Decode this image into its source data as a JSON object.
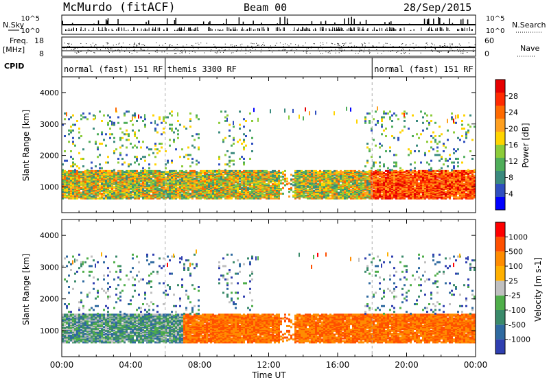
{
  "header": {
    "station": "McMurdo (fitACF)",
    "beam": "Beam 00",
    "date": "28/Sep/2015"
  },
  "strip": {
    "nsky_label": "N.Sky",
    "nsearch_label": "N.Search",
    "freq_label_1": "Freq.",
    "freq_label_2": "[MHz]",
    "nave_label": "Nave",
    "cpid_label": "CPID",
    "nsky_ticks": [
      "10^5",
      "10^0"
    ],
    "nsearch_ticks": [
      "10^5",
      "10^0"
    ],
    "freq_ticks": [
      "18",
      "8"
    ],
    "nave_ticks": [
      "60",
      "0"
    ],
    "cpid_segments": [
      {
        "label": "normal (fast) 151 RF",
        "start_h": 0,
        "end_h": 6
      },
      {
        "label": "themis 3300 RF",
        "start_h": 6,
        "end_h": 18
      },
      {
        "label": "normal (fast) 151 RF",
        "start_h": 18,
        "end_h": 24
      }
    ]
  },
  "chart_data": [
    {
      "type": "heatmap",
      "ylabel": "Slant Range [km]",
      "y_ticks": [
        "4000",
        "3000",
        "2000",
        "1000"
      ],
      "ylim": [
        180,
        4500
      ],
      "xlim": [
        0,
        24
      ],
      "colorbar": {
        "label": "Power [dB]",
        "ticks": [
          "28",
          "24",
          "20",
          "16",
          "12",
          "8",
          "4"
        ],
        "colors": [
          "#0000ff",
          "#2f4fbf",
          "#3a8a7e",
          "#4fae5a",
          "#8ccc3a",
          "#ffd400",
          "#ffa020",
          "#ff6a00",
          "#ff2a00",
          "#e60000"
        ]
      },
      "main_band_km": [
        600,
        1500
      ],
      "scatter_band_km": [
        1500,
        3400
      ]
    },
    {
      "type": "heatmap",
      "ylabel": "Slant Range [km]",
      "y_ticks": [
        "4000",
        "3000",
        "2000",
        "1000"
      ],
      "ylim": [
        180,
        4500
      ],
      "xlim": [
        0,
        24
      ],
      "colorbar": {
        "label": "Velocity [m s-1]",
        "ticks": [
          "1000",
          "500",
          "100",
          "25",
          "-25",
          "-100",
          "-500",
          "-1000"
        ],
        "colors": [
          "#2f3fb0",
          "#2f6aa0",
          "#3a8a6a",
          "#4fae4a",
          "#c0c0c0",
          "#ffb000",
          "#ff8c00",
          "#ff5000",
          "#ff0000"
        ]
      },
      "main_band_km": [
        600,
        1500
      ],
      "scatter_band_km": [
        1500,
        3400
      ]
    }
  ],
  "x_axis": {
    "ticks": [
      "00:00",
      "04:00",
      "08:00",
      "12:00",
      "16:00",
      "20:00",
      "00:00"
    ],
    "label": "Time UT"
  }
}
